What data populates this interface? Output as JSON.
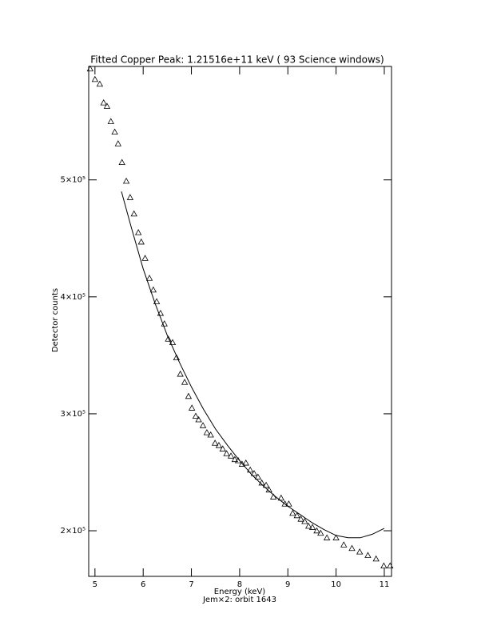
{
  "chart_data": {
    "type": "scatter",
    "title": "Fitted Copper Peak:  1.21516e+11 keV (      93 Science windows)",
    "x_label": "Energy (keV)",
    "y_label": "Detector counts",
    "subtitle": "Jem×2: orbit 1643",
    "xlim": [
      4.87,
      11.15
    ],
    "ylim": [
      161000,
      597000
    ],
    "xticks": [
      5,
      6,
      7,
      8,
      9,
      10,
      11
    ],
    "yticks": [
      {
        "value": 200000,
        "label": "2×10⁵"
      },
      {
        "value": 300000,
        "label": "3×10⁵"
      },
      {
        "value": 400000,
        "label": "4×10⁵"
      },
      {
        "value": 500000,
        "label": "5×10⁵"
      }
    ],
    "series": [
      {
        "mode": "markers",
        "marker": "triangle",
        "color": "#000000",
        "x": [
          4.9,
          5.0,
          5.1,
          5.18,
          5.25,
          5.33,
          5.41,
          5.48,
          5.56,
          5.65,
          5.73,
          5.81,
          5.9,
          5.96,
          6.04,
          6.13,
          6.21,
          6.28,
          6.36,
          6.44,
          6.52,
          6.61,
          6.69,
          6.77,
          6.86,
          6.94,
          7.01,
          7.09,
          7.15,
          7.24,
          7.32,
          7.4,
          7.49,
          7.57,
          7.65,
          7.73,
          7.82,
          7.9,
          7.97,
          8.05,
          8.13,
          8.22,
          8.3,
          8.38,
          8.46,
          8.55,
          8.61,
          8.7,
          8.86,
          8.94,
          9.02,
          9.1,
          9.19,
          9.27,
          9.35,
          9.43,
          9.51,
          9.6,
          9.68,
          9.81,
          10.0,
          10.16,
          10.33,
          10.49,
          10.66,
          10.83,
          10.99,
          11.12
        ],
        "values": [
          595000,
          586000,
          582000,
          566000,
          563000,
          550000,
          541000,
          531000,
          515000,
          499000,
          485000,
          471000,
          455000,
          447000,
          433000,
          416000,
          406000,
          396000,
          386000,
          377000,
          364000,
          361000,
          348000,
          334000,
          327000,
          315000,
          305000,
          298000,
          295000,
          290000,
          284000,
          282000,
          275000,
          273000,
          270000,
          266000,
          264000,
          261000,
          260000,
          257000,
          258000,
          252000,
          249000,
          246000,
          241000,
          239000,
          235000,
          229000,
          228000,
          223000,
          223000,
          215000,
          213000,
          210000,
          208000,
          204000,
          203000,
          200000,
          198000,
          194000,
          194000,
          188000,
          185000,
          182000,
          179000,
          176000,
          170000,
          170000
        ]
      },
      {
        "mode": "line",
        "color": "#000000",
        "x": [
          5.55,
          5.75,
          6.0,
          6.25,
          6.5,
          6.75,
          7.0,
          7.25,
          7.5,
          7.75,
          8.0,
          8.25,
          8.5,
          8.75,
          9.0,
          9.25,
          9.5,
          9.75,
          10.0,
          10.25,
          10.5,
          10.75,
          11.0
        ],
        "values": [
          490000,
          460000,
          424000,
          394000,
          367000,
          344000,
          323000,
          304000,
          287000,
          273000,
          260000,
          248000,
          238000,
          229000,
          221000,
          214000,
          207000,
          201000,
          196000,
          194000,
          194000,
          197000,
          202000
        ]
      }
    ]
  }
}
